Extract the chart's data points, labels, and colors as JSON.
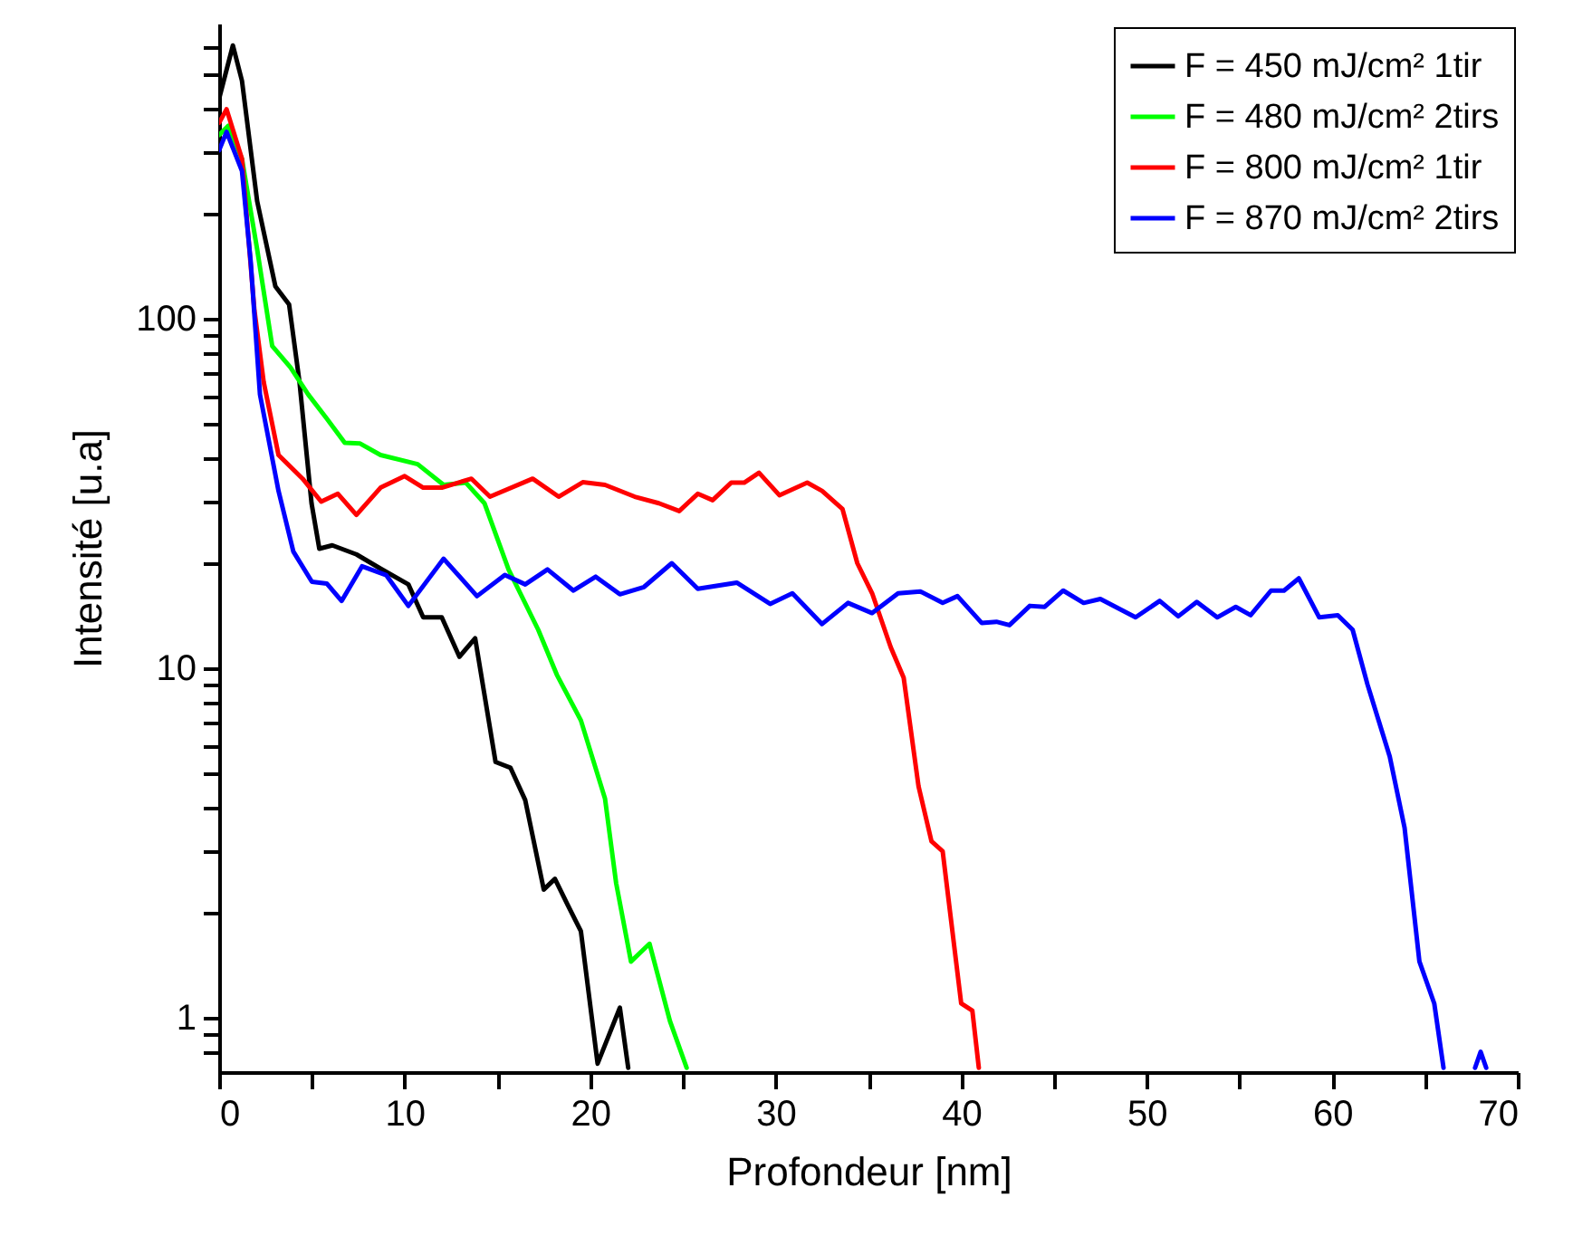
{
  "chart_data": {
    "type": "line",
    "xlabel": "Profondeur [nm]",
    "ylabel": "Intensité [u.a]",
    "log": "y",
    "legend": "top right",
    "line_style": "solid",
    "xlim": [
      0,
      70
    ],
    "ylim": [
      0.7,
      700
    ],
    "xticks": [
      0,
      {
        "value": 5,
        "label": null
      },
      10,
      {
        "value": 15,
        "label": null
      },
      20,
      {
        "value": 25,
        "label": null
      },
      30,
      {
        "value": 35,
        "label": null
      },
      40,
      {
        "value": 45,
        "label": null
      },
      50,
      {
        "value": 55,
        "label": null
      },
      60,
      {
        "value": 65,
        "label": null
      },
      70
    ],
    "yticks": [
      {
        "value": 0.8,
        "label": null
      },
      {
        "value": 0.9,
        "label": null
      },
      1,
      {
        "value": 2,
        "label": null
      },
      {
        "value": 3,
        "label": null
      },
      {
        "value": 4,
        "label": null
      },
      {
        "value": 5,
        "label": null
      },
      {
        "value": 6,
        "label": null
      },
      {
        "value": 7,
        "label": null
      },
      {
        "value": 8,
        "label": null
      },
      {
        "value": 9,
        "label": null
      },
      10,
      {
        "value": 20,
        "label": null
      },
      {
        "value": 30,
        "label": null
      },
      {
        "value": 40,
        "label": null
      },
      {
        "value": 50,
        "label": null
      },
      {
        "value": 60,
        "label": null
      },
      {
        "value": 70,
        "label": null
      },
      {
        "value": 80,
        "label": null
      },
      {
        "value": 90,
        "label": null
      },
      100,
      {
        "value": 200,
        "label": null
      },
      {
        "value": 300,
        "label": null
      },
      {
        "value": 400,
        "label": null
      },
      {
        "value": 500,
        "label": null
      },
      {
        "value": 600,
        "label": null
      }
    ],
    "series": [
      {
        "name": "F = 450 mJ/cm² 1tir",
        "color": "#000000",
        "x": [
          0,
          0.74,
          1.23,
          2.05,
          3.03,
          3.77,
          4.33,
          4.98,
          5.4,
          6.1,
          7.4,
          8.7,
          10.2,
          11.0,
          12.0,
          12.95,
          13.8,
          14.9,
          15.7,
          16.5,
          17.5,
          18.1,
          18.8,
          19.5,
          20.4,
          21.6,
          22.05
        ],
        "values": [
          427,
          606,
          480,
          217,
          124,
          110,
          66,
          29.7,
          22,
          22.5,
          21.2,
          19.3,
          17.4,
          14,
          14,
          10.8,
          12.2,
          5.4,
          5.2,
          4.2,
          2.33,
          2.5,
          2.1,
          1.77,
          0.74,
          1.07,
          0.72
        ]
      },
      {
        "name": "F = 480 mJ/cm² 2tirs",
        "color": "#00ff00",
        "x": [
          0,
          0.5,
          1.23,
          2.05,
          2.86,
          3.84,
          4.8,
          5.8,
          6.77,
          7.6,
          8.7,
          10.7,
          12.1,
          13.3,
          14.3,
          15.6,
          17.2,
          18.2,
          19.5,
          20.8,
          21.4,
          22.2,
          23.2,
          24.3,
          25.2
        ],
        "values": [
          336,
          357,
          287,
          158,
          83.6,
          72.7,
          60.8,
          51.9,
          44.2,
          44,
          40.8,
          38.4,
          33.5,
          34,
          29.7,
          19.2,
          12.9,
          9.6,
          7.1,
          4.24,
          2.43,
          1.45,
          1.63,
          0.98,
          0.72
        ]
      },
      {
        "name": "F = 800 mJ/cm² 1tir",
        "color": "#ff0000",
        "x": [
          0,
          0.4,
          1.23,
          1.9,
          2.4,
          3.2,
          4.5,
          5.5,
          6.4,
          7.4,
          8.7,
          10.0,
          11.0,
          12.0,
          13.6,
          14.6,
          16.9,
          18.3,
          19.6,
          20.8,
          22.4,
          23.7,
          24.8,
          25.8,
          26.6,
          27.6,
          28.3,
          29.1,
          30.2,
          31.7,
          32.5,
          33.6,
          34.4,
          35.2,
          36.2,
          36.9,
          37.7,
          38.4,
          39.0,
          40.0,
          40.6,
          40.95
        ],
        "values": [
          364,
          398,
          287,
          106,
          66,
          40.8,
          34.9,
          30,
          31.6,
          27.5,
          32.9,
          35.5,
          32.9,
          32.9,
          34.9,
          31,
          34.9,
          31,
          34.1,
          33.5,
          31,
          29.7,
          28.2,
          31.6,
          30.3,
          34,
          34,
          36.3,
          31.3,
          34,
          32.2,
          28.6,
          20,
          16.4,
          11.5,
          9.4,
          4.6,
          3.2,
          3.0,
          1.1,
          1.05,
          0.72
        ]
      },
      {
        "name": "F = 870 mJ/cm² 2tirs",
        "color": "#0000ff",
        "x": [
          0,
          0.4,
          1.23,
          1.7,
          2.2,
          3.2,
          4.0,
          5.0,
          5.8,
          6.6,
          7.7,
          9.0,
          10.2,
          12.1,
          13.9,
          15.4,
          16.5,
          17.7,
          19.1,
          20.3,
          21.6,
          22.9,
          24.4,
          25.8,
          27.9,
          29.7,
          30.9,
          32.5,
          33.9,
          35.2,
          36.6,
          37.8,
          39.0,
          39.8,
          41.1,
          41.9,
          42.6,
          43.7,
          44.5,
          45.5,
          46.6,
          47.5,
          49.4,
          50.7,
          51.7,
          52.7,
          53.8,
          54.8,
          55.6,
          56.7,
          57.4,
          58.2,
          59.3,
          60.3,
          61.1,
          61.9,
          63.1,
          63.9,
          64.7,
          65.5,
          66.0,
          67.0,
          67.7,
          68.0,
          68.3
        ],
        "values": [
          304,
          343,
          265,
          146,
          60.8,
          32.2,
          21.6,
          17.7,
          17.5,
          15.6,
          19.6,
          18.5,
          15.1,
          20.6,
          16.1,
          18.5,
          17.4,
          19.2,
          16.7,
          18.3,
          16.3,
          17.1,
          20,
          16.9,
          17.6,
          15.3,
          16.4,
          13.4,
          15.4,
          14.4,
          16.4,
          16.6,
          15.4,
          16.1,
          13.5,
          13.6,
          13.3,
          15.1,
          15.0,
          16.7,
          15.4,
          15.8,
          14.0,
          15.6,
          14.1,
          15.5,
          14.0,
          15.0,
          14.2,
          16.7,
          16.7,
          18.1,
          14.0,
          14.2,
          12.9,
          9.0,
          5.6,
          3.5,
          1.45,
          1.1,
          0.72,
          null,
          0.72,
          0.8,
          0.72
        ]
      }
    ]
  }
}
